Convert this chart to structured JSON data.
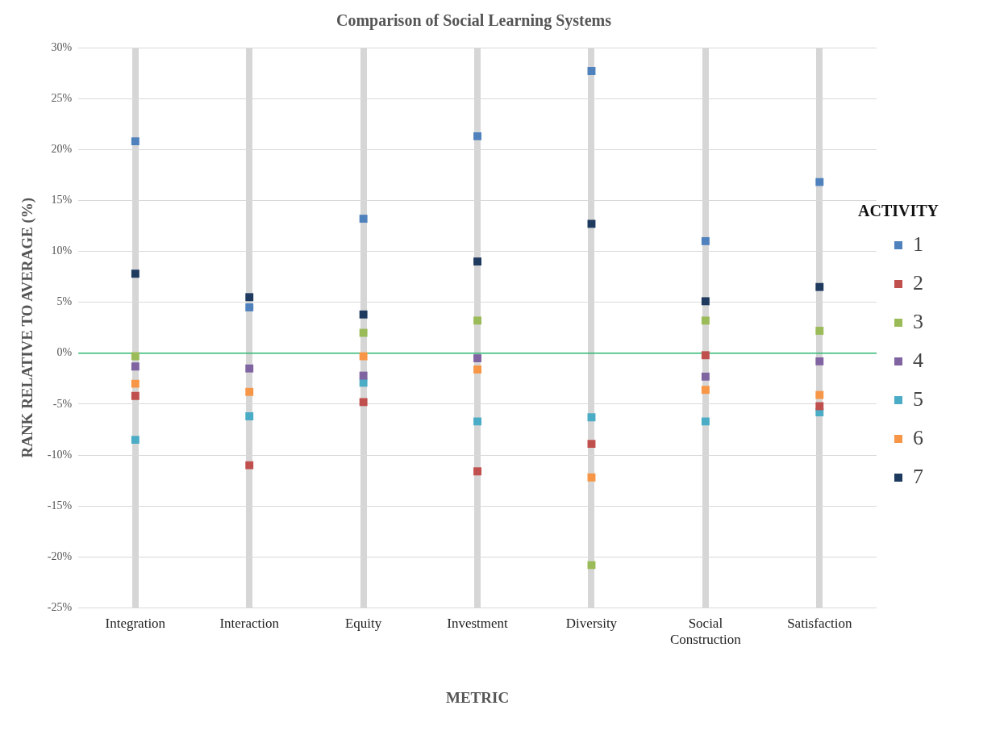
{
  "chart_data": {
    "type": "scatter",
    "title": "Comparison of Social Learning Systems",
    "xlabel": "METRIC",
    "ylabel": "RANK RELATIVE TO AVERAGE (%)",
    "legend_title": "ACTIVITY",
    "categories": [
      "Integration",
      "Interaction",
      "Equity",
      "Investment",
      "Diversity",
      "Social Construction",
      "Satisfaction"
    ],
    "series": [
      {
        "name": "1",
        "color": "#4f81bd",
        "values": [
          20.8,
          4.5,
          13.2,
          21.3,
          27.7,
          11.0,
          16.8
        ]
      },
      {
        "name": "2",
        "color": "#c0504d",
        "values": [
          -4.2,
          -11.0,
          -4.8,
          -11.6,
          -8.9,
          -0.2,
          -5.2
        ]
      },
      {
        "name": "3",
        "color": "#9bbb59",
        "values": [
          -0.3,
          null,
          2.0,
          3.2,
          -20.8,
          3.2,
          2.2
        ]
      },
      {
        "name": "4",
        "color": "#8064a2",
        "values": [
          -1.3,
          -1.5,
          -2.2,
          -0.5,
          null,
          -2.3,
          -0.8
        ]
      },
      {
        "name": "5",
        "color": "#4bacc6",
        "values": [
          -8.5,
          -6.2,
          -2.9,
          -6.7,
          -6.3,
          -6.7,
          -5.8
        ]
      },
      {
        "name": "6",
        "color": "#f79646",
        "values": [
          -3.0,
          -3.8,
          -0.3,
          -1.6,
          -12.2,
          -3.6,
          -4.1
        ]
      },
      {
        "name": "7",
        "color": "#1f3a5f",
        "values": [
          7.8,
          5.5,
          3.8,
          9.0,
          12.7,
          5.1,
          6.5
        ]
      }
    ],
    "ylim": [
      -25,
      30
    ],
    "yticks": [
      {
        "value": -25,
        "label": "-25%"
      },
      {
        "value": -20,
        "label": "-20%"
      },
      {
        "value": -15,
        "label": "-15%"
      },
      {
        "value": -10,
        "label": "-10%"
      },
      {
        "value": -5,
        "label": "-5%"
      },
      {
        "value": 0,
        "label": "0%"
      },
      {
        "value": 5,
        "label": "5%"
      },
      {
        "value": 10,
        "label": "10%"
      },
      {
        "value": 15,
        "label": "15%"
      },
      {
        "value": 20,
        "label": "20%"
      },
      {
        "value": 25,
        "label": "25%"
      },
      {
        "value": 30,
        "label": "30%"
      }
    ],
    "ref_lines": [
      {
        "axis": "y",
        "value": 0,
        "color": "#2eb872"
      }
    ],
    "grid": true,
    "legend": "right",
    "marker": "square"
  }
}
